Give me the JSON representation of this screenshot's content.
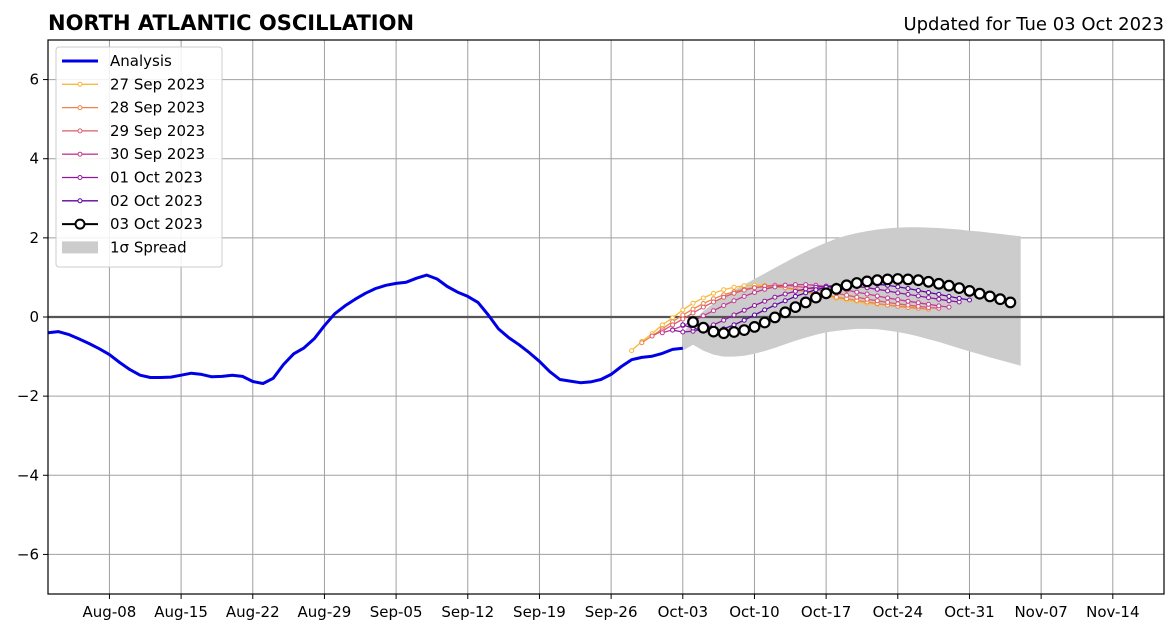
{
  "chart_data": {
    "type": "line",
    "title": "NORTH ATLANTIC OSCILLATION",
    "subtitle": "Updated for Tue 03 Oct 2023",
    "xlabel": "",
    "ylabel": "",
    "x_range": [
      "2023-08-02",
      "2023-11-19"
    ],
    "ylim": [
      -7,
      7
    ],
    "y_ticks": [
      -6,
      -4,
      -2,
      0,
      2,
      4,
      6
    ],
    "y_tick_labels": [
      "−6",
      "−4",
      "−2",
      "0",
      "2",
      "4",
      "6"
    ],
    "x_ticks": [
      {
        "date": "2023-08-08",
        "label": "Aug-08"
      },
      {
        "date": "2023-08-15",
        "label": "Aug-15"
      },
      {
        "date": "2023-08-22",
        "label": "Aug-22"
      },
      {
        "date": "2023-08-29",
        "label": "Aug-29"
      },
      {
        "date": "2023-09-05",
        "label": "Sep-05"
      },
      {
        "date": "2023-09-12",
        "label": "Sep-12"
      },
      {
        "date": "2023-09-19",
        "label": "Sep-19"
      },
      {
        "date": "2023-09-26",
        "label": "Sep-26"
      },
      {
        "date": "2023-10-03",
        "label": "Oct-03"
      },
      {
        "date": "2023-10-10",
        "label": "Oct-10"
      },
      {
        "date": "2023-10-17",
        "label": "Oct-17"
      },
      {
        "date": "2023-10-24",
        "label": "Oct-24"
      },
      {
        "date": "2023-10-31",
        "label": "Oct-31"
      },
      {
        "date": "2023-11-07",
        "label": "Nov-07"
      },
      {
        "date": "2023-11-14",
        "label": "Nov-14"
      }
    ],
    "grid": true,
    "zero_line": true,
    "legend_position": "top-left",
    "analysis": {
      "name": "Analysis",
      "color": "#0000e6",
      "start_date": "2023-08-02",
      "values": [
        -0.4,
        -0.37,
        -0.44,
        -0.55,
        -0.67,
        -0.8,
        -0.95,
        -1.15,
        -1.33,
        -1.47,
        -1.53,
        -1.53,
        -1.52,
        -1.47,
        -1.42,
        -1.45,
        -1.51,
        -1.5,
        -1.47,
        -1.5,
        -1.63,
        -1.68,
        -1.55,
        -1.2,
        -0.93,
        -0.78,
        -0.55,
        -0.22,
        0.08,
        0.28,
        0.45,
        0.6,
        0.72,
        0.8,
        0.85,
        0.88,
        0.98,
        1.06,
        0.96,
        0.77,
        0.63,
        0.52,
        0.37,
        0.05,
        -0.3,
        -0.52,
        -0.7,
        -0.9,
        -1.12,
        -1.38,
        -1.58,
        -1.62,
        -1.66,
        -1.64,
        -1.58,
        -1.45,
        -1.25,
        -1.08,
        -1.02,
        -0.99,
        -0.92,
        -0.82,
        -0.79
      ]
    },
    "forecasts": [
      {
        "name": "27 Sep 2023",
        "color": "#f7b93b",
        "start_date": "2023-09-28",
        "values": [
          -0.85,
          -0.62,
          -0.42,
          -0.2,
          -0.02,
          0.18,
          0.35,
          0.48,
          0.6,
          0.69,
          0.75,
          0.79,
          0.8,
          0.8,
          0.78,
          0.74,
          0.68,
          0.63,
          0.57,
          0.52,
          0.47,
          0.43,
          0.39,
          0.35,
          0.32,
          0.3,
          0.28,
          0.26,
          0.24
        ]
      },
      {
        "name": "28 Sep 2023",
        "color": "#ee8448",
        "start_date": "2023-09-29",
        "values": [
          -0.65,
          -0.48,
          -0.3,
          -0.12,
          0.05,
          0.2,
          0.34,
          0.46,
          0.56,
          0.64,
          0.7,
          0.74,
          0.76,
          0.76,
          0.74,
          0.7,
          0.65,
          0.6,
          0.55,
          0.5,
          0.46,
          0.42,
          0.38,
          0.34,
          0.3,
          0.27,
          0.24,
          0.22,
          0.2
        ]
      },
      {
        "name": "29 Sep 2023",
        "color": "#dc5b6b",
        "start_date": "2023-09-30",
        "values": [
          -0.48,
          -0.35,
          -0.2,
          -0.05,
          0.1,
          0.25,
          0.38,
          0.5,
          0.6,
          0.68,
          0.74,
          0.78,
          0.8,
          0.8,
          0.78,
          0.74,
          0.7,
          0.65,
          0.6,
          0.55,
          0.5,
          0.45,
          0.41,
          0.37,
          0.33,
          0.3,
          0.27,
          0.24,
          0.22
        ]
      },
      {
        "name": "30 Sep 2023",
        "color": "#c43c94",
        "start_date": "2023-10-01",
        "values": [
          -0.4,
          -0.32,
          -0.22,
          -0.1,
          0.03,
          0.16,
          0.29,
          0.41,
          0.52,
          0.62,
          0.7,
          0.76,
          0.8,
          0.82,
          0.82,
          0.8,
          0.77,
          0.73,
          0.68,
          0.63,
          0.58,
          0.53,
          0.48,
          0.44,
          0.4,
          0.36,
          0.32,
          0.28,
          0.25
        ]
      },
      {
        "name": "01 Oct 2023",
        "color": "#9015a0",
        "start_date": "2023-10-02",
        "values": [
          -0.33,
          -0.38,
          -0.36,
          -0.3,
          -0.2,
          -0.08,
          0.05,
          0.17,
          0.29,
          0.4,
          0.5,
          0.58,
          0.65,
          0.71,
          0.75,
          0.78,
          0.79,
          0.79,
          0.77,
          0.74,
          0.7,
          0.66,
          0.61,
          0.57,
          0.53,
          0.49,
          0.45,
          0.41,
          0.38
        ]
      },
      {
        "name": "02 Oct 2023",
        "color": "#5b04a0",
        "start_date": "2023-10-03",
        "values": [
          -0.2,
          -0.28,
          -0.34,
          -0.35,
          -0.3,
          -0.2,
          -0.08,
          0.05,
          0.18,
          0.3,
          0.41,
          0.52,
          0.61,
          0.69,
          0.75,
          0.8,
          0.83,
          0.85,
          0.85,
          0.83,
          0.8,
          0.76,
          0.72,
          0.67,
          0.62,
          0.57,
          0.52,
          0.47,
          0.43
        ]
      },
      {
        "name": "03 Oct 2023",
        "color": "#000000",
        "start_date": "2023-10-04",
        "values": [
          -0.13,
          -0.27,
          -0.37,
          -0.41,
          -0.38,
          -0.33,
          -0.25,
          -0.14,
          -0.01,
          0.12,
          0.25,
          0.37,
          0.49,
          0.6,
          0.71,
          0.8,
          0.86,
          0.9,
          0.93,
          0.95,
          0.96,
          0.95,
          0.93,
          0.89,
          0.84,
          0.79,
          0.73,
          0.66,
          0.59,
          0.52,
          0.45,
          0.37
        ]
      }
    ],
    "spread": {
      "name": "1σ Spread",
      "color": "#cccccc",
      "start_date": "2023-10-03",
      "upper": [
        -0.4,
        -0.1,
        0.15,
        0.35,
        0.52,
        0.68,
        0.82,
        0.96,
        1.1,
        1.24,
        1.38,
        1.52,
        1.65,
        1.77,
        1.88,
        1.98,
        2.06,
        2.12,
        2.17,
        2.21,
        2.24,
        2.26,
        2.27,
        2.27,
        2.26,
        2.25,
        2.23,
        2.21,
        2.18,
        2.16,
        2.13,
        2.1,
        2.07,
        2.04
      ],
      "lower": [
        -0.85,
        -0.7,
        -0.85,
        -0.95,
        -1.0,
        -1.0,
        -0.98,
        -0.93,
        -0.86,
        -0.78,
        -0.69,
        -0.6,
        -0.52,
        -0.45,
        -0.39,
        -0.35,
        -0.32,
        -0.3,
        -0.3,
        -0.31,
        -0.34,
        -0.38,
        -0.43,
        -0.49,
        -0.56,
        -0.63,
        -0.71,
        -0.79,
        -0.87,
        -0.94,
        -1.02,
        -1.09,
        -1.16,
        -1.23
      ]
    }
  }
}
